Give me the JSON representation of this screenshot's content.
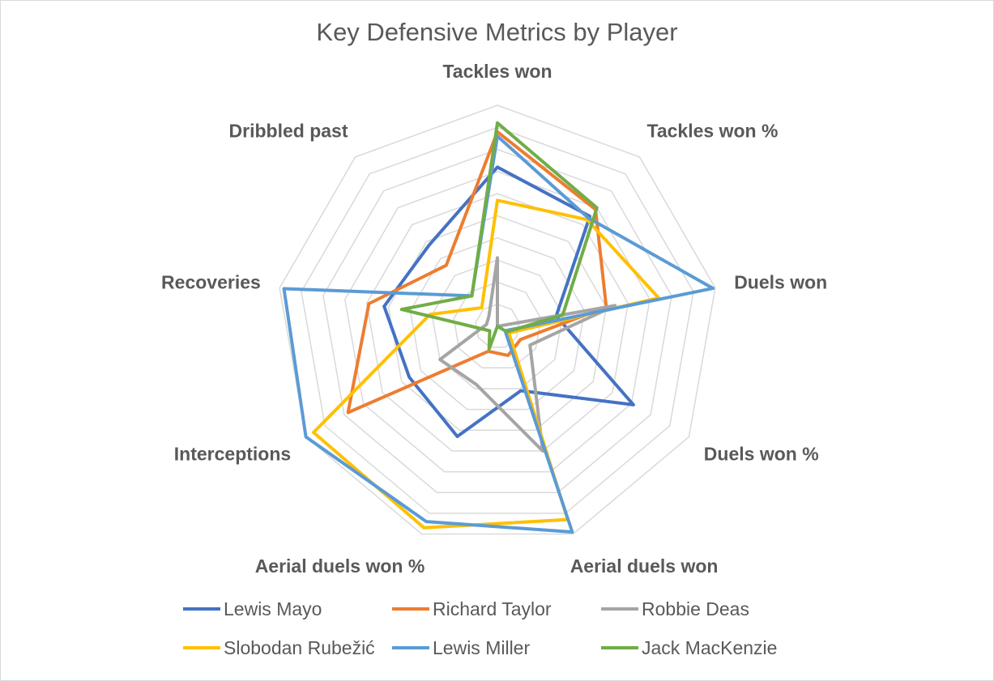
{
  "chart_data": {
    "type": "radar",
    "title": "Key Defensive Metrics by Player",
    "categories": [
      "Tackles won",
      "Tackles won %",
      "Duels won",
      "Duels won %",
      "Aerial duels won",
      "Aerial duels won %",
      "Interceptions",
      "Recoveries",
      "Dribbled past"
    ],
    "rlim": [
      0,
      10
    ],
    "rings": 10,
    "grid": true,
    "legend_position": "bottom",
    "series": [
      {
        "name": "Lewis Mayo",
        "color": "#4472C4",
        "values": [
          7.2,
          6.5,
          2.7,
          7.1,
          3.1,
          5.3,
          4.6,
          5.2,
          4.8
        ]
      },
      {
        "name": "Richard Taylor",
        "color": "#ED7D31",
        "values": [
          8.8,
          6.9,
          5.0,
          1.2,
          1.4,
          1.2,
          7.8,
          5.9,
          3.6
        ]
      },
      {
        "name": "Robbie Deas",
        "color": "#A5A5A5",
        "values": [
          3.1,
          0.0,
          5.4,
          1.7,
          6.0,
          2.8,
          3.0,
          0.5,
          0.6
        ]
      },
      {
        "name": "Slobodan Rubežić",
        "color": "#FFC000",
        "values": [
          5.7,
          6.3,
          7.4,
          0.6,
          9.3,
          9.7,
          9.6,
          3.1,
          1.1
        ]
      },
      {
        "name": "Lewis Miller",
        "color": "#5B9BD5",
        "values": [
          8.6,
          6.4,
          9.9,
          0.4,
          9.9,
          9.4,
          10.0,
          9.8,
          1.8
        ]
      },
      {
        "name": "Jack MacKenzie",
        "color": "#70AD47",
        "values": [
          9.2,
          7.0,
          3.0,
          0.5,
          0.0,
          1.1,
          0.4,
          4.4,
          1.8
        ]
      }
    ]
  }
}
